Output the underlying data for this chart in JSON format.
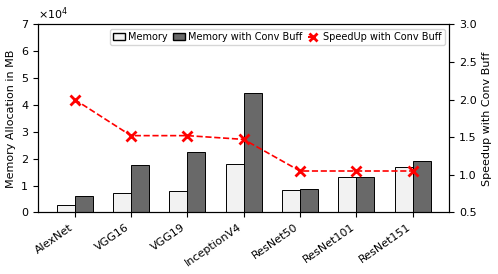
{
  "categories": [
    "AlexNet",
    "VGG16",
    "VGG19",
    "InceptionV4",
    "ResNet50",
    "ResNet101",
    "ResNet151"
  ],
  "memory": [
    2800,
    7200,
    8000,
    18000,
    8500,
    13000,
    17000
  ],
  "memory_conv": [
    6000,
    17800,
    22500,
    44500,
    8800,
    13200,
    19000
  ],
  "speedup": [
    2.0,
    1.52,
    1.52,
    1.47,
    1.05,
    1.05,
    1.05
  ],
  "bar_color_memory": "#f2f2f2",
  "bar_color_conv": "#696969",
  "bar_edge_color": "#000000",
  "line_color": "#ff0000",
  "ylabel_left": "Memory Allocation in MB",
  "ylabel_right": "Speedup with Conv Buff",
  "ylim_left": [
    0,
    70000
  ],
  "ylim_right": [
    0.5,
    3.0
  ],
  "yticks_left": [
    0,
    10000,
    20000,
    30000,
    40000,
    50000,
    60000,
    70000
  ],
  "yticks_left_labels": [
    "0",
    "1",
    "2",
    "3",
    "4",
    "5",
    "6",
    "7"
  ],
  "yticks_right": [
    0.5,
    1.0,
    1.5,
    2.0,
    2.5,
    3.0
  ],
  "legend_labels": [
    "Memory",
    "Memory with Conv Buff",
    "SpeedUp with Conv Buff"
  ],
  "background_color": "#ffffff",
  "bar_width": 0.32
}
